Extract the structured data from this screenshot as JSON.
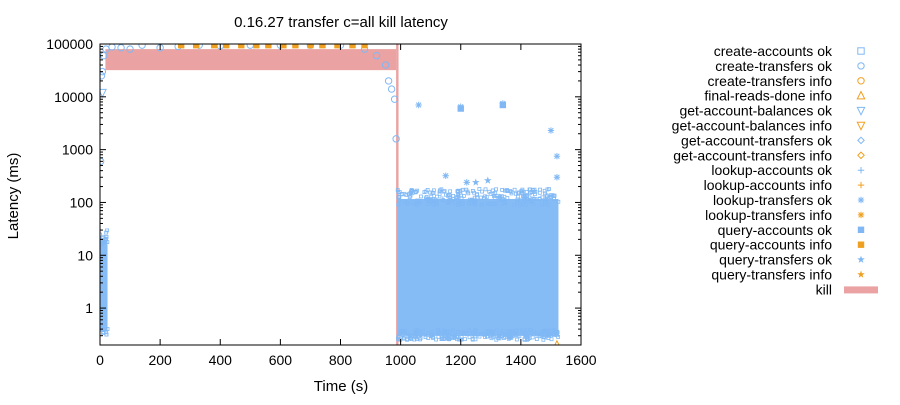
{
  "chart_data": {
    "type": "scatter",
    "title": "0.16.27 transfer c=all kill latency",
    "xlabel": "Time (s)",
    "ylabel": "Latency (ms)",
    "xlim": [
      0,
      1600
    ],
    "ylim": [
      0.2,
      100000
    ],
    "yscale": "log",
    "grid": false,
    "legend_position": "right",
    "x_ticks": [
      {
        "value": 0,
        "label": "0"
      },
      {
        "value": 200,
        "label": "200"
      },
      {
        "value": 400,
        "label": "400"
      },
      {
        "value": 600,
        "label": "600"
      },
      {
        "value": 800,
        "label": "800"
      },
      {
        "value": 1000,
        "label": "1000"
      },
      {
        "value": 1200,
        "label": "1200"
      },
      {
        "value": 1400,
        "label": "1400"
      },
      {
        "value": 1600,
        "label": "1600"
      }
    ],
    "y_ticks": [
      {
        "value": 1,
        "label": "1"
      },
      {
        "value": 10,
        "label": "10"
      },
      {
        "value": 100,
        "label": "100"
      },
      {
        "value": 1000,
        "label": "1000"
      },
      {
        "value": 10000,
        "label": "10000"
      },
      {
        "value": 100000,
        "label": "100000"
      }
    ],
    "colors": {
      "ok": "#7fb8f5",
      "info": "#f0a020",
      "kill": "#eaa2a2"
    },
    "series": [
      {
        "name": "create-accounts ok",
        "marker": "square-open",
        "color": "#7fb8f5",
        "points": []
      },
      {
        "name": "create-transfers ok",
        "marker": "circle-open",
        "color": "#7fb8f5",
        "points": [
          [
            2,
            600
          ],
          [
            5,
            25000
          ],
          [
            8,
            30000
          ],
          [
            12,
            60000
          ],
          [
            20,
            80000
          ],
          [
            40,
            88000
          ],
          [
            70,
            85000
          ],
          [
            100,
            80000
          ],
          [
            140,
            95000
          ],
          [
            200,
            85000
          ],
          [
            260,
            90000
          ],
          [
            330,
            95000
          ],
          [
            400,
            92000
          ],
          [
            500,
            95000
          ],
          [
            600,
            95000
          ],
          [
            700,
            95000
          ],
          [
            800,
            95000
          ],
          [
            880,
            80000
          ],
          [
            920,
            60000
          ],
          [
            950,
            40000
          ],
          [
            960,
            20000
          ],
          [
            970,
            14000
          ],
          [
            980,
            9000
          ],
          [
            985,
            1600
          ]
        ]
      },
      {
        "name": "create-transfers info",
        "marker": "circle-open",
        "color": "#f0a020",
        "points": []
      },
      {
        "name": "final-reads-done info",
        "marker": "triangle-up-open",
        "color": "#f0a020",
        "points": [
          [
            1520,
            0.2
          ]
        ]
      },
      {
        "name": "get-account-balances ok",
        "marker": "triangle-down-open",
        "color": "#7fb8f5",
        "points": [
          [
            8,
            12000
          ]
        ]
      },
      {
        "name": "get-account-balances info",
        "marker": "triangle-down-open",
        "color": "#f0a020",
        "points": []
      },
      {
        "name": "get-account-transfers ok",
        "marker": "diamond-open",
        "color": "#7fb8f5",
        "points": []
      },
      {
        "name": "get-account-transfers info",
        "marker": "diamond-open",
        "color": "#f0a020",
        "points": []
      },
      {
        "name": "lookup-accounts ok",
        "marker": "plus",
        "color": "#7fb8f5",
        "points": []
      },
      {
        "name": "lookup-accounts info",
        "marker": "plus",
        "color": "#f0a020",
        "points": []
      },
      {
        "name": "lookup-transfers ok",
        "marker": "asterisk",
        "color": "#7fb8f5",
        "points": [
          [
            1060,
            7000
          ],
          [
            1200,
            6500
          ],
          [
            1340,
            7500
          ],
          [
            1500,
            2300
          ],
          [
            1520,
            750
          ],
          [
            1520,
            300
          ],
          [
            1150,
            320
          ],
          [
            1220,
            240
          ]
        ]
      },
      {
        "name": "lookup-transfers info",
        "marker": "asterisk",
        "color": "#f0a020",
        "points": []
      },
      {
        "name": "query-accounts ok",
        "marker": "square-filled",
        "color": "#7fb8f5",
        "points": [
          [
            1200,
            6000
          ],
          [
            1340,
            7000
          ]
        ]
      },
      {
        "name": "query-accounts info",
        "marker": "square-filled",
        "color": "#f0a020",
        "points": [
          [
            270,
            95000
          ],
          [
            320,
            95000
          ],
          [
            380,
            95000
          ],
          [
            420,
            95000
          ],
          [
            470,
            95000
          ],
          [
            520,
            95000
          ],
          [
            560,
            95000
          ],
          [
            610,
            95000
          ],
          [
            650,
            95000
          ],
          [
            700,
            95000
          ],
          [
            740,
            95000
          ],
          [
            790,
            95000
          ],
          [
            840,
            95000
          ],
          [
            880,
            95000
          ]
        ]
      },
      {
        "name": "query-transfers ok",
        "marker": "star-filled",
        "color": "#7fb8f5",
        "points": [
          [
            1250,
            240
          ],
          [
            1290,
            260
          ]
        ]
      },
      {
        "name": "query-transfers info",
        "marker": "star-filled",
        "color": "#f0a020",
        "points": []
      },
      {
        "name": "kill",
        "marker": "bar",
        "color": "#eaa2a2",
        "points": []
      }
    ],
    "bulk_regions": [
      {
        "series": "create-transfers ok",
        "x_range": [
          0,
          25
        ],
        "y_range": [
          0.3,
          30
        ]
      },
      {
        "series": "create-transfers ok",
        "x_range": [
          990,
          1525
        ],
        "y_range": [
          0.25,
          180
        ]
      }
    ],
    "kill_intervals": [
      {
        "x_range": [
          18,
          985
        ],
        "y_range": [
          32000,
          80000
        ]
      },
      {
        "x_range": [
          985,
          993
        ],
        "y_range": [
          0.2,
          100000
        ]
      }
    ]
  }
}
